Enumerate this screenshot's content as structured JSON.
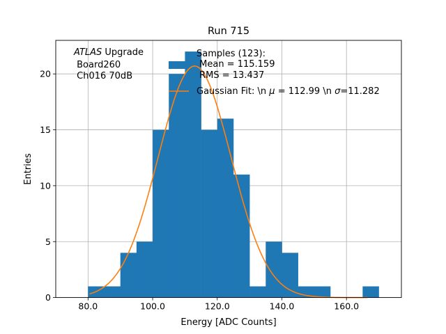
{
  "chart_data": {
    "type": "bar",
    "title": "Run 715",
    "xlabel": "Energy [ADC Counts]",
    "ylabel": "Entries",
    "xlim": [
      70,
      177
    ],
    "ylim": [
      0,
      23
    ],
    "grid": true,
    "xticks": [
      80,
      100,
      120,
      140,
      160
    ],
    "xtick_labels": [
      "80.0",
      "100.0",
      "120.0",
      "140.0",
      "160.0"
    ],
    "yticks": [
      0,
      5,
      10,
      15,
      20
    ],
    "ytick_labels": [
      "0",
      "5",
      "10",
      "15",
      "20"
    ],
    "bin_edges": [
      80,
      85,
      90,
      95,
      100,
      105,
      110,
      115,
      120,
      125,
      130,
      135,
      140,
      145,
      150,
      155,
      160,
      165,
      170
    ],
    "counts": [
      1,
      1,
      4,
      5,
      15,
      20,
      22,
      15,
      16,
      11,
      1,
      5,
      4,
      1,
      1,
      0,
      0,
      1
    ],
    "histogram_color": "#1f77b4",
    "fit": {
      "mean": 112.99,
      "sigma": 11.282,
      "amplitude": 20.7,
      "x_range": [
        80.5,
        166.5
      ],
      "color": "#ff7f0e"
    },
    "annotation_lines": [
      "ATLAS Upgrade",
      " Board260",
      " Ch016 70dB"
    ],
    "annotation_italic": "ATLAS",
    "annotation_rest": " Upgrade",
    "legend": {
      "placement": "top-right",
      "hist_label_lines": [
        "Samples (123):",
        " Mean = 115.159",
        " RMS = 13.437"
      ],
      "fit_label_prefix": "Gaussian Fit: \\n ",
      "fit_label_mu_symbol": "μ",
      "fit_label_mid": " = 112.99 \\n ",
      "fit_label_sigma_symbol": "σ",
      "fit_label_end": "=11.282"
    }
  }
}
